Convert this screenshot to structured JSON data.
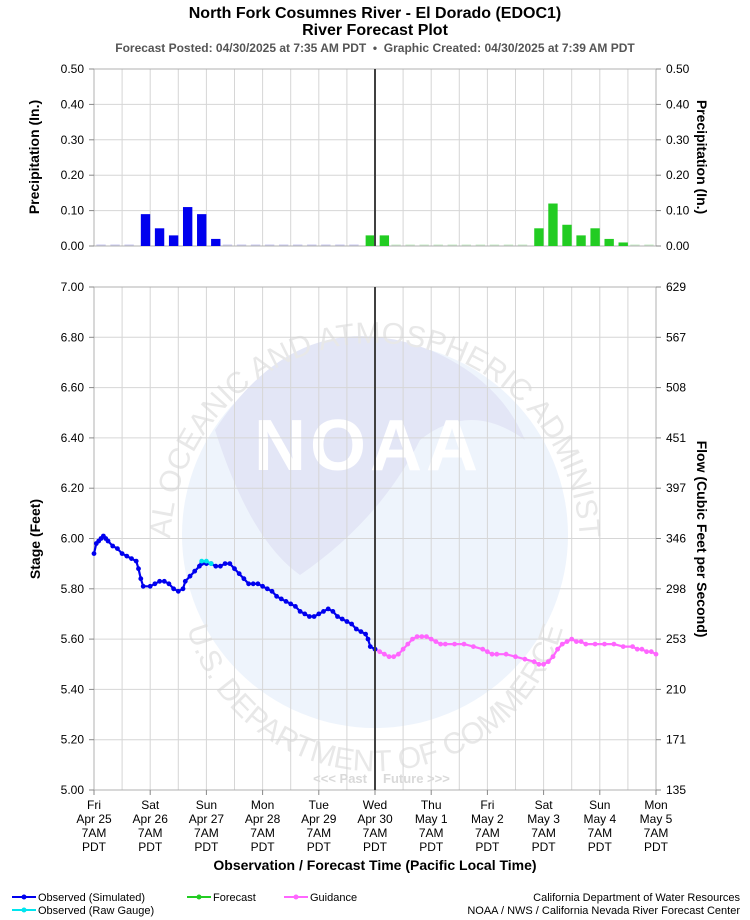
{
  "header": {
    "title_line1": "North Fork Cosumnes River - El Dorado (EDOC1)",
    "title_line2": "River Forecast Plot",
    "subtitle": "Forecast Posted: 04/30/2025 at 7:35 AM PDT  •  Graphic Created: 04/30/2025 at 7:39 AM PDT"
  },
  "colors": {
    "observed_bar": "#0000ee",
    "observed_line": "#0000ee",
    "raw_gauge": "#00e5ee",
    "forecast": "#22cc22",
    "guidance": "#ff66ff",
    "now_line": "#404040"
  },
  "chart_data": [
    {
      "type": "bar",
      "name": "precipitation",
      "ylabel_left": "Precipitation (In.)",
      "ylabel_right": "Precipitation (In.)",
      "ylim": [
        0,
        0.5
      ],
      "yticks": [
        "0.00",
        "0.10",
        "0.20",
        "0.30",
        "0.40",
        "0.50"
      ],
      "x_unit": "hours since Fri Apr 25 7AM",
      "bar_width_hours": 4,
      "observed": [
        {
          "t": 22,
          "v": 0.09
        },
        {
          "t": 28,
          "v": 0.05
        },
        {
          "t": 34,
          "v": 0.03
        },
        {
          "t": 40,
          "v": 0.11
        },
        {
          "t": 46,
          "v": 0.09
        },
        {
          "t": 52,
          "v": 0.02
        }
      ],
      "forecast": [
        {
          "t": 118,
          "v": 0.03
        },
        {
          "t": 124,
          "v": 0.03
        },
        {
          "t": 190,
          "v": 0.05
        },
        {
          "t": 196,
          "v": 0.12
        },
        {
          "t": 202,
          "v": 0.06
        },
        {
          "t": 208,
          "v": 0.03
        },
        {
          "t": 214,
          "v": 0.05
        },
        {
          "t": 220,
          "v": 0.02
        },
        {
          "t": 226,
          "v": 0.01
        }
      ]
    },
    {
      "type": "line",
      "name": "stage_flow",
      "xlabel": "Observation / Forecast Time (Pacific Local Time)",
      "ylabel_left": "Stage (Feet)",
      "ylabel_right": "Flow (Cubic Feet per Second)",
      "ylim": [
        5.0,
        7.0
      ],
      "yticks_left": [
        "5.00",
        "5.20",
        "5.40",
        "5.60",
        "5.80",
        "6.00",
        "6.20",
        "6.40",
        "6.60",
        "6.80",
        "7.00"
      ],
      "yticks_right": [
        "135",
        "171",
        "210",
        "253",
        "298",
        "346",
        "397",
        "451",
        "508",
        "567",
        "629"
      ],
      "xlim_hours": [
        0,
        240
      ],
      "now_hours": 120,
      "x_ticks": [
        {
          "day": "Fri",
          "date": "Apr 25",
          "time": "7AM",
          "tz": "PDT"
        },
        {
          "day": "Sat",
          "date": "Apr 26",
          "time": "7AM",
          "tz": "PDT"
        },
        {
          "day": "Sun",
          "date": "Apr 27",
          "time": "7AM",
          "tz": "PDT"
        },
        {
          "day": "Mon",
          "date": "Apr 28",
          "time": "7AM",
          "tz": "PDT"
        },
        {
          "day": "Tue",
          "date": "Apr 29",
          "time": "7AM",
          "tz": "PDT"
        },
        {
          "day": "Wed",
          "date": "Apr 30",
          "time": "7AM",
          "tz": "PDT"
        },
        {
          "day": "Thu",
          "date": "May 1",
          "time": "7AM",
          "tz": "PDT"
        },
        {
          "day": "Fri",
          "date": "May 2",
          "time": "7AM",
          "tz": "PDT"
        },
        {
          "day": "Sat",
          "date": "May 3",
          "time": "7AM",
          "tz": "PDT"
        },
        {
          "day": "Sun",
          "date": "May 4",
          "time": "7AM",
          "tz": "PDT"
        },
        {
          "day": "Mon",
          "date": "May 5",
          "time": "7AM",
          "tz": "PDT"
        }
      ],
      "series": [
        {
          "name": "Observed (Simulated)",
          "points": [
            [
              0,
              5.94
            ],
            [
              1,
              5.98
            ],
            [
              2,
              5.99
            ],
            [
              3,
              6.0
            ],
            [
              4,
              6.01
            ],
            [
              5,
              6.0
            ],
            [
              6,
              5.99
            ],
            [
              8,
              5.97
            ],
            [
              10,
              5.96
            ],
            [
              12,
              5.94
            ],
            [
              14,
              5.93
            ],
            [
              16,
              5.92
            ],
            [
              18,
              5.91
            ],
            [
              19,
              5.88
            ],
            [
              20,
              5.84
            ],
            [
              21,
              5.81
            ],
            [
              24,
              5.81
            ],
            [
              26,
              5.82
            ],
            [
              28,
              5.83
            ],
            [
              30,
              5.83
            ],
            [
              32,
              5.82
            ],
            [
              34,
              5.8
            ],
            [
              36,
              5.79
            ],
            [
              38,
              5.8
            ],
            [
              39,
              5.83
            ],
            [
              41,
              5.85
            ],
            [
              43,
              5.87
            ],
            [
              45,
              5.89
            ],
            [
              46,
              5.9
            ],
            [
              48,
              5.9
            ],
            [
              50,
              5.9
            ],
            [
              52,
              5.89
            ],
            [
              54,
              5.89
            ],
            [
              56,
              5.9
            ],
            [
              58,
              5.9
            ],
            [
              60,
              5.88
            ],
            [
              62,
              5.86
            ],
            [
              64,
              5.84
            ],
            [
              66,
              5.82
            ],
            [
              68,
              5.82
            ],
            [
              70,
              5.82
            ],
            [
              72,
              5.81
            ],
            [
              74,
              5.8
            ],
            [
              76,
              5.79
            ],
            [
              78,
              5.77
            ],
            [
              80,
              5.76
            ],
            [
              82,
              5.75
            ],
            [
              84,
              5.74
            ],
            [
              86,
              5.73
            ],
            [
              88,
              5.71
            ],
            [
              90,
              5.7
            ],
            [
              92,
              5.69
            ],
            [
              94,
              5.69
            ],
            [
              96,
              5.7
            ],
            [
              98,
              5.71
            ],
            [
              100,
              5.72
            ],
            [
              102,
              5.71
            ],
            [
              104,
              5.69
            ],
            [
              106,
              5.68
            ],
            [
              108,
              5.67
            ],
            [
              110,
              5.66
            ],
            [
              112,
              5.64
            ],
            [
              114,
              5.63
            ],
            [
              116,
              5.62
            ],
            [
              117,
              5.6
            ],
            [
              118,
              5.57
            ],
            [
              120,
              5.56
            ]
          ]
        },
        {
          "name": "Observed (Raw Gauge)",
          "points": [
            [
              46,
              5.91
            ],
            [
              48,
              5.91
            ],
            [
              50,
              5.9
            ]
          ]
        },
        {
          "name": "Forecast",
          "points": []
        },
        {
          "name": "Guidance",
          "points": [
            [
              120,
              5.56
            ],
            [
              122,
              5.55
            ],
            [
              124,
              5.54
            ],
            [
              126,
              5.53
            ],
            [
              128,
              5.53
            ],
            [
              130,
              5.54
            ],
            [
              132,
              5.56
            ],
            [
              134,
              5.58
            ],
            [
              136,
              5.6
            ],
            [
              138,
              5.61
            ],
            [
              140,
              5.61
            ],
            [
              142,
              5.61
            ],
            [
              144,
              5.6
            ],
            [
              146,
              5.59
            ],
            [
              148,
              5.58
            ],
            [
              150,
              5.58
            ],
            [
              154,
              5.58
            ],
            [
              158,
              5.58
            ],
            [
              162,
              5.57
            ],
            [
              166,
              5.56
            ],
            [
              168,
              5.55
            ],
            [
              170,
              5.54
            ],
            [
              172,
              5.54
            ],
            [
              176,
              5.54
            ],
            [
              180,
              5.53
            ],
            [
              184,
              5.52
            ],
            [
              188,
              5.51
            ],
            [
              190,
              5.5
            ],
            [
              192,
              5.5
            ],
            [
              194,
              5.51
            ],
            [
              196,
              5.53
            ],
            [
              198,
              5.56
            ],
            [
              200,
              5.58
            ],
            [
              202,
              5.59
            ],
            [
              204,
              5.6
            ],
            [
              206,
              5.59
            ],
            [
              208,
              5.59
            ],
            [
              210,
              5.58
            ],
            [
              214,
              5.58
            ],
            [
              218,
              5.58
            ],
            [
              222,
              5.58
            ],
            [
              226,
              5.57
            ],
            [
              230,
              5.57
            ],
            [
              232,
              5.56
            ],
            [
              234,
              5.56
            ],
            [
              236,
              5.55
            ],
            [
              238,
              5.55
            ],
            [
              240,
              5.54
            ]
          ]
        }
      ]
    }
  ],
  "annotations": {
    "past": "<<< Past",
    "future": "Future >>>"
  },
  "watermark": {
    "logo_text": "NOAA",
    "ring_top": "NATIONAL OCEANIC AND ATMOSPHERIC ADMINISTRATION",
    "ring_bottom": "U.S. DEPARTMENT OF COMMERCE"
  },
  "legend": [
    {
      "label": "Observed (Simulated)",
      "color_key": "observed_line"
    },
    {
      "label": "Observed (Raw Gauge)",
      "color_key": "raw_gauge"
    },
    {
      "label": "Forecast",
      "color_key": "forecast"
    },
    {
      "label": "Guidance",
      "color_key": "guidance"
    }
  ],
  "credits": {
    "line1": "California Department of Water Resources",
    "line2": "NOAA / NWS / California Nevada River Forecast Center"
  }
}
